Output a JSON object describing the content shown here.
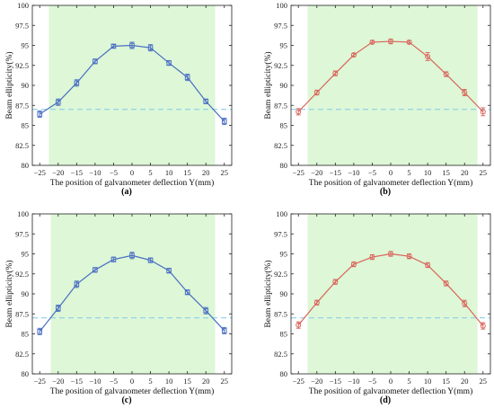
{
  "figure": {
    "panels": [
      {
        "label": "(a)",
        "color": "#4a6fc2",
        "series_key": "a"
      },
      {
        "label": "(b)",
        "color": "#d96459",
        "series_key": "b"
      },
      {
        "label": "(c)",
        "color": "#4a6fc2",
        "series_key": "c"
      },
      {
        "label": "(d)",
        "color": "#d96459",
        "series_key": "d"
      }
    ],
    "shade_color": "#ddf7d7",
    "threshold_color": "#8ccfe8"
  },
  "chart_data": [
    {
      "type": "line",
      "panel": "(a)",
      "xlabel": "The position of galvanometer deflection Y(mm)",
      "ylabel": "Beam ellipticity(%)",
      "xlim": [
        -27,
        27
      ],
      "ylim": [
        80,
        100
      ],
      "xticks": [
        -25,
        -20,
        -15,
        -10,
        -5,
        0,
        5,
        10,
        15,
        20,
        25
      ],
      "yticks": [
        "80",
        "82.5",
        "85",
        "87.5",
        "90",
        "92.5",
        "95",
        "97.5",
        "100"
      ],
      "shaded_x_range": [
        -22.5,
        22.5
      ],
      "threshold_y": 87,
      "marker": "square",
      "x": [
        -25,
        -20,
        -15,
        -10,
        -5,
        0,
        5,
        10,
        15,
        20,
        25
      ],
      "y": [
        86.4,
        87.9,
        90.3,
        93.0,
        94.9,
        95.0,
        94.7,
        92.8,
        91.0,
        88.0,
        85.5
      ],
      "error": [
        0.4,
        0.4,
        0.4,
        0.3,
        0.2,
        0.4,
        0.4,
        0.3,
        0.4,
        0.3,
        0.4
      ],
      "grid": false
    },
    {
      "type": "line",
      "panel": "(b)",
      "xlabel": "The position of galvanometer deflection Y(mm)",
      "ylabel": "Beam ellipticity(%)",
      "xlim": [
        -27,
        27
      ],
      "ylim": [
        80,
        100
      ],
      "xticks": [
        -25,
        -20,
        -15,
        -10,
        -5,
        0,
        5,
        10,
        15,
        20,
        25
      ],
      "yticks": [
        "80",
        "82.5",
        "85",
        "87.5",
        "90",
        "92.5",
        "95",
        "97.5",
        "100"
      ],
      "shaded_x_range": [
        -22.5,
        23.5
      ],
      "threshold_y": 87,
      "marker": "circle",
      "x": [
        -25,
        -20,
        -15,
        -10,
        -5,
        0,
        5,
        10,
        15,
        20,
        25
      ],
      "y": [
        86.7,
        89.1,
        91.5,
        93.8,
        95.4,
        95.5,
        95.4,
        93.6,
        91.4,
        89.1,
        86.7
      ],
      "error": [
        0.4,
        0.3,
        0.3,
        0.2,
        0.2,
        0.3,
        0.2,
        0.5,
        0.3,
        0.4,
        0.5
      ],
      "grid": false
    },
    {
      "type": "line",
      "panel": "(c)",
      "xlabel": "The position of galvanometer deflection Y(mm)",
      "ylabel": "Beam ellipticity(%)",
      "xlim": [
        -27,
        27
      ],
      "ylim": [
        80,
        100
      ],
      "xticks": [
        -25,
        -20,
        -15,
        -10,
        -5,
        0,
        5,
        10,
        15,
        20,
        25
      ],
      "yticks": [
        "80",
        "82.5",
        "85",
        "87.5",
        "90",
        "92.5",
        "95",
        "97.5",
        "100"
      ],
      "shaded_x_range": [
        -22,
        22.5
      ],
      "threshold_y": 87,
      "marker": "square",
      "x": [
        -25,
        -20,
        -15,
        -10,
        -5,
        0,
        5,
        10,
        15,
        20,
        25
      ],
      "y": [
        85.3,
        88.2,
        91.2,
        93.0,
        94.3,
        94.8,
        94.2,
        92.9,
        90.2,
        87.9,
        85.4
      ],
      "error": [
        0.4,
        0.4,
        0.4,
        0.3,
        0.3,
        0.4,
        0.3,
        0.3,
        0.3,
        0.4,
        0.4
      ],
      "grid": false
    },
    {
      "type": "line",
      "panel": "(d)",
      "xlabel": "The position of galvanometer deflection Y(mm)",
      "ylabel": "Beam ellipticity(%)",
      "xlim": [
        -27,
        27
      ],
      "ylim": [
        80,
        100
      ],
      "xticks": [
        -25,
        -20,
        -15,
        -10,
        -5,
        0,
        5,
        10,
        15,
        20,
        25
      ],
      "yticks": [
        "80",
        "82.5",
        "85",
        "87.5",
        "90",
        "92.5",
        "95",
        "97.5",
        "100"
      ],
      "shaded_x_range": [
        -22.5,
        23.5
      ],
      "threshold_y": 87,
      "marker": "circle",
      "x": [
        -25,
        -20,
        -15,
        -10,
        -5,
        0,
        5,
        10,
        15,
        20,
        25
      ],
      "y": [
        86.1,
        88.9,
        91.5,
        93.7,
        94.6,
        95.0,
        94.7,
        93.6,
        91.3,
        88.8,
        86.0
      ],
      "error": [
        0.4,
        0.3,
        0.3,
        0.3,
        0.3,
        0.3,
        0.3,
        0.3,
        0.3,
        0.4,
        0.4
      ],
      "grid": false
    }
  ]
}
